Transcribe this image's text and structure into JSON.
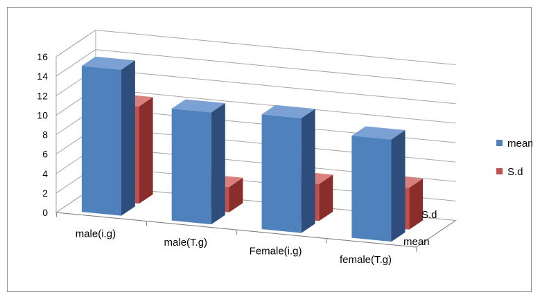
{
  "colors": {
    "mean_front": "#4F81BD",
    "mean_side": "#2E4D7B",
    "mean_top": "#7BA0D4",
    "sd_front": "#C0504D",
    "sd_side": "#8A2E2C",
    "sd_top": "#D9807E",
    "grid": "#a6a6a6"
  },
  "chart_data": {
    "type": "bar",
    "subtype": "3d-column",
    "categories": [
      "male(i.g)",
      "male(T.g)",
      "Female(i.g)",
      "female(T.g)"
    ],
    "series": [
      {
        "name": "mean",
        "values": [
          15,
          11.5,
          11.8,
          10.5
        ]
      },
      {
        "name": "S.d",
        "values": [
          10,
          2.6,
          3.8,
          4.3
        ]
      }
    ],
    "depth_labels": [
      "S.d",
      "mean"
    ],
    "yticks": [
      "0",
      "2",
      "4",
      "6",
      "8",
      "10",
      "12",
      "14",
      "16"
    ],
    "ylim": [
      0,
      16
    ],
    "grid": true,
    "legend": "right"
  }
}
